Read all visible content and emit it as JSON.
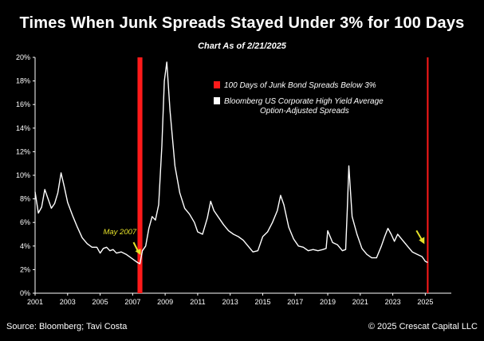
{
  "chart_data": {
    "type": "line",
    "title": "Times When Junk Spreads Stayed Under 3% for 100 Days",
    "subtitle": "Chart As of 2/21/2025",
    "xlabel": "",
    "ylabel": "",
    "xlim": [
      2001.0,
      2026.6
    ],
    "ylim": [
      0,
      20
    ],
    "x_ticks": [
      "2001",
      "2003",
      "2005",
      "2007",
      "2009",
      "2011",
      "2013",
      "2015",
      "2017",
      "2019",
      "2021",
      "2023",
      "2025"
    ],
    "y_ticks": [
      "0%",
      "2%",
      "4%",
      "6%",
      "8%",
      "10%",
      "12%",
      "14%",
      "16%",
      "18%",
      "20%"
    ],
    "grid": false,
    "legend_position": "top-right",
    "legend": [
      {
        "label": "100 Days of Junk Bond Spreads Below 3%",
        "color": "#ff1a1a"
      },
      {
        "label": "Bloomberg US Corporate High Yield Average\nOption-Adjusted Spreads",
        "color": "#ffffff"
      }
    ],
    "shaded_periods": [
      {
        "start": 2007.3,
        "end": 2007.6,
        "color": "#ff1a1a"
      },
      {
        "start": 2025.1,
        "end": 2025.15,
        "color": "#ff1a1a"
      }
    ],
    "series": [
      {
        "color": "#ffffff",
        "x": [
          2001.0,
          2001.2,
          2001.4,
          2001.6,
          2001.8,
          2002.0,
          2002.2,
          2002.4,
          2002.6,
          2002.8,
          2003.0,
          2003.3,
          2003.6,
          2003.9,
          2004.2,
          2004.5,
          2004.8,
          2005.0,
          2005.2,
          2005.4,
          2005.6,
          2005.8,
          2006.0,
          2006.3,
          2006.6,
          2006.9,
          2007.1,
          2007.3,
          2007.45,
          2007.6,
          2007.8,
          2008.0,
          2008.2,
          2008.4,
          2008.6,
          2008.8,
          2008.95,
          2009.1,
          2009.3,
          2009.6,
          2009.9,
          2010.2,
          2010.5,
          2010.8,
          2011.0,
          2011.3,
          2011.6,
          2011.8,
          2012.0,
          2012.3,
          2012.6,
          2012.9,
          2013.2,
          2013.5,
          2013.8,
          2014.1,
          2014.4,
          2014.7,
          2015.0,
          2015.3,
          2015.6,
          2015.9,
          2016.1,
          2016.3,
          2016.6,
          2016.9,
          2017.2,
          2017.5,
          2017.8,
          2018.1,
          2018.4,
          2018.7,
          2018.9,
          2019.0,
          2019.3,
          2019.6,
          2019.9,
          2020.1,
          2020.2,
          2020.3,
          2020.5,
          2020.8,
          2021.1,
          2021.4,
          2021.7,
          2022.0,
          2022.3,
          2022.5,
          2022.7,
          2022.9,
          2023.1,
          2023.3,
          2023.6,
          2023.9,
          2024.2,
          2024.5,
          2024.8,
          2025.0,
          2025.15
        ],
        "y": [
          8.6,
          6.8,
          7.3,
          8.8,
          8.0,
          7.2,
          7.6,
          8.5,
          10.2,
          9.0,
          7.7,
          6.6,
          5.6,
          4.7,
          4.2,
          3.9,
          3.9,
          3.4,
          3.8,
          3.9,
          3.6,
          3.7,
          3.4,
          3.5,
          3.3,
          3.0,
          2.8,
          2.6,
          2.5,
          3.6,
          4.0,
          5.5,
          6.5,
          6.2,
          7.5,
          12.5,
          18.0,
          19.6,
          15.5,
          10.8,
          8.5,
          7.2,
          6.7,
          6.0,
          5.2,
          5.0,
          6.4,
          7.8,
          7.0,
          6.4,
          5.8,
          5.3,
          5.0,
          4.8,
          4.5,
          4.0,
          3.5,
          3.6,
          4.8,
          5.2,
          6.0,
          7.0,
          8.3,
          7.5,
          5.6,
          4.6,
          4.0,
          3.9,
          3.6,
          3.7,
          3.6,
          3.7,
          3.8,
          5.3,
          4.3,
          4.1,
          3.6,
          3.7,
          7.0,
          10.8,
          6.5,
          5.0,
          3.8,
          3.3,
          3.0,
          3.0,
          4.0,
          4.8,
          5.5,
          5.0,
          4.4,
          5.0,
          4.5,
          4.0,
          3.5,
          3.3,
          3.1,
          2.7,
          2.6
        ]
      }
    ],
    "annotations": [
      {
        "text": "May 2007",
        "x": 2007.35,
        "y": 3.1,
        "color": "#e6e22a"
      },
      {
        "text": "",
        "x": 2024.85,
        "y": 4.1,
        "color": "#e6e22a"
      }
    ]
  },
  "footer": {
    "source": "Source: Bloomberg; Tavi Costa",
    "copyright": "© 2025 Crescat Capital LLC"
  }
}
